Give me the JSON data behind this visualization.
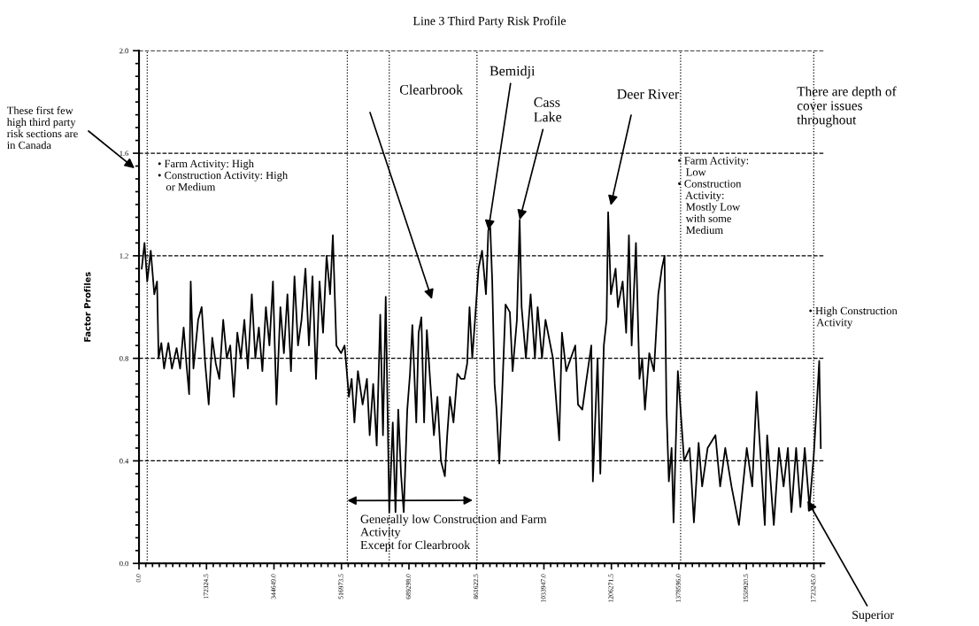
{
  "chart_data": {
    "type": "line",
    "title": "Line 3 Third Party Risk Profile",
    "ylabel": "Factor Profiles",
    "xlim": [
      0,
      1750000
    ],
    "ylim": [
      0,
      2.0
    ],
    "xticks": [
      {
        "value": 0,
        "label": "0.0"
      },
      {
        "value": 172324.5,
        "label": "172324.5"
      },
      {
        "value": 344649.0,
        "label": "344649.0"
      },
      {
        "value": 516973.5,
        "label": "516973.5"
      },
      {
        "value": 689298.0,
        "label": "689298.0"
      },
      {
        "value": 861622.5,
        "label": "861622.5"
      },
      {
        "value": 1033947.0,
        "label": "1033947.0"
      },
      {
        "value": 1206271.5,
        "label": "1206271.5"
      },
      {
        "value": 1378596.0,
        "label": "1378596.0"
      },
      {
        "value": 1550920.5,
        "label": "1550920.5"
      },
      {
        "value": 1723245.0,
        "label": "1723245.0"
      }
    ],
    "yticks": [
      {
        "value": 0,
        "label": "0.0"
      },
      {
        "value": 0.4,
        "label": "0.4"
      },
      {
        "value": 0.8,
        "label": "0.8"
      },
      {
        "value": 1.2,
        "label": "1.2"
      },
      {
        "value": 1.6,
        "label": "1.6"
      },
      {
        "value": 2.0,
        "label": "2.0"
      }
    ],
    "grid": "y",
    "legend": false,
    "marker": "none",
    "line_style": "solid",
    "series": [
      {
        "color": "#000000",
        "x": [
          7000,
          14000,
          21000,
          30000,
          39000,
          46000,
          50000,
          57000,
          64000,
          75000,
          84000,
          96000,
          105000,
          114000,
          121000,
          128000,
          132000,
          139000,
          151000,
          160000,
          169000,
          178000,
          187000,
          196000,
          205000,
          215000,
          224000,
          233000,
          242000,
          251000,
          260000,
          269000,
          278000,
          288000,
          297000,
          306000,
          315000,
          324000,
          333000,
          342000,
          351000,
          361000,
          370000,
          379000,
          388000,
          397000,
          406000,
          415000,
          425000,
          434000,
          443000,
          452000,
          461000,
          470000,
          479000,
          488000,
          495000,
          504000,
          516000,
          525000,
          536000,
          543000,
          550000,
          559000,
          571000,
          582000,
          589000,
          598000,
          607000,
          616000,
          623000,
          630000,
          639000,
          648000,
          655000,
          662000,
          669000,
          676000,
          685000,
          692000,
          698000,
          708000,
          714000,
          721000,
          728000,
          735000,
          744000,
          753000,
          762000,
          771000,
          781000,
          787000,
          794000,
          803000,
          813000,
          822000,
          831000,
          838000,
          844000,
          851000,
          858000,
          867000,
          876000,
          886000,
          892000,
          897000,
          902000,
          908000,
          913000,
          920000,
          927000,
          936000,
          947000,
          954000,
          965000,
          972000,
          977000,
          988000,
          1000000,
          1011000,
          1018000,
          1029000,
          1038000,
          1057000,
          1073000,
          1080000,
          1091000,
          1114000,
          1121000,
          1132000,
          1141000,
          1155000,
          1159000,
          1171000,
          1178000,
          1187000,
          1194000,
          1198000,
          1205000,
          1217000,
          1223000,
          1235000,
          1244000,
          1251000,
          1258000,
          1269000,
          1278000,
          1285000,
          1292000,
          1303000,
          1315000,
          1326000,
          1335000,
          1342000,
          1347000,
          1353000,
          1360000,
          1365000,
          1376000,
          1392000,
          1406000,
          1417000,
          1429000,
          1438000,
          1452000,
          1472000,
          1484000,
          1497000,
          1513000,
          1532000,
          1552000,
          1566000,
          1577000,
          1586000,
          1598000,
          1604000,
          1621000,
          1634000,
          1646000,
          1657000,
          1666000,
          1678000,
          1689000,
          1700000,
          1712000,
          1723000,
          1730000,
          1737000,
          1741000
        ],
        "values": [
          1.15,
          1.25,
          1.1,
          1.22,
          1.05,
          1.1,
          0.8,
          0.86,
          0.76,
          0.86,
          0.76,
          0.84,
          0.76,
          0.92,
          0.78,
          0.66,
          1.1,
          0.76,
          0.95,
          1.0,
          0.78,
          0.62,
          0.88,
          0.78,
          0.72,
          0.95,
          0.8,
          0.85,
          0.65,
          0.9,
          0.8,
          0.95,
          0.76,
          1.05,
          0.8,
          0.92,
          0.75,
          1.0,
          0.85,
          1.1,
          0.62,
          1.0,
          0.82,
          1.05,
          0.75,
          1.12,
          0.85,
          0.95,
          1.15,
          0.85,
          1.12,
          0.72,
          1.1,
          0.9,
          1.2,
          1.05,
          1.28,
          0.85,
          0.82,
          0.85,
          0.65,
          0.72,
          0.55,
          0.75,
          0.62,
          0.72,
          0.5,
          0.7,
          0.46,
          0.97,
          0.5,
          1.04,
          0.2,
          0.55,
          0.2,
          0.6,
          0.35,
          0.2,
          0.6,
          0.74,
          0.93,
          0.55,
          0.9,
          0.96,
          0.55,
          0.91,
          0.7,
          0.5,
          0.65,
          0.4,
          0.34,
          0.5,
          0.65,
          0.55,
          0.74,
          0.72,
          0.72,
          0.78,
          1.0,
          0.8,
          0.95,
          1.15,
          1.22,
          1.05,
          1.3,
          1.31,
          1.1,
          0.7,
          0.6,
          0.39,
          0.65,
          1.01,
          0.98,
          0.75,
          0.95,
          1.34,
          1.0,
          0.8,
          1.05,
          0.8,
          1.0,
          0.8,
          0.95,
          0.8,
          0.48,
          0.9,
          0.75,
          0.85,
          0.62,
          0.6,
          0.7,
          0.85,
          0.32,
          0.8,
          0.35,
          0.85,
          0.95,
          1.37,
          1.05,
          1.15,
          1.0,
          1.1,
          0.9,
          1.28,
          0.85,
          1.25,
          0.72,
          0.8,
          0.6,
          0.82,
          0.75,
          1.05,
          1.15,
          1.2,
          0.6,
          0.32,
          0.45,
          0.16,
          0.75,
          0.4,
          0.45,
          0.16,
          0.47,
          0.3,
          0.45,
          0.5,
          0.3,
          0.45,
          0.3,
          0.15,
          0.45,
          0.3,
          0.67,
          0.45,
          0.15,
          0.5,
          0.15,
          0.45,
          0.3,
          0.45,
          0.2,
          0.45,
          0.22,
          0.45,
          0.22,
          0.42,
          0.6,
          0.79,
          0.45
        ]
      }
    ],
    "ref_lines": [
      {
        "axis": "x",
        "value": 21000,
        "line_style": "dotted"
      },
      {
        "axis": "x",
        "value": 532000,
        "line_style": "dotted"
      },
      {
        "axis": "x",
        "value": 639000,
        "line_style": "dotted"
      },
      {
        "axis": "x",
        "value": 863000,
        "line_style": "dotted"
      },
      {
        "axis": "x",
        "value": 1383000,
        "line_style": "dotted"
      },
      {
        "axis": "x",
        "value": 1723000,
        "line_style": "dotted"
      }
    ],
    "annotations": [
      "These first few\nhigh third party\nrisk sections are\nin Canada",
      "• Farm Activity: High\n• Construction Activity: High\n   or Medium",
      "• Farm Activity:\n   Low\n• Construction\n   Activity:\n   Mostly Low\n   with some\n   Medium",
      "There are depth of\ncover issues\nthroughout",
      "• High Construction\n   Activity",
      "Clearbrook",
      {
        "text": "Bemidji",
        "x": 892000,
        "y": 1.3
      },
      {
        "text": "Cass\nLake",
        "x": 972000,
        "y": 1.34
      },
      "Deer River",
      {
        "text": "Superior",
        "x": 1707000,
        "y": 0.245
      },
      {
        "text": "Generally low Construction and Farm\nActivity\nExcept for Clearbrook",
        "x": 532000,
        "y": 0.245
      }
    ]
  }
}
